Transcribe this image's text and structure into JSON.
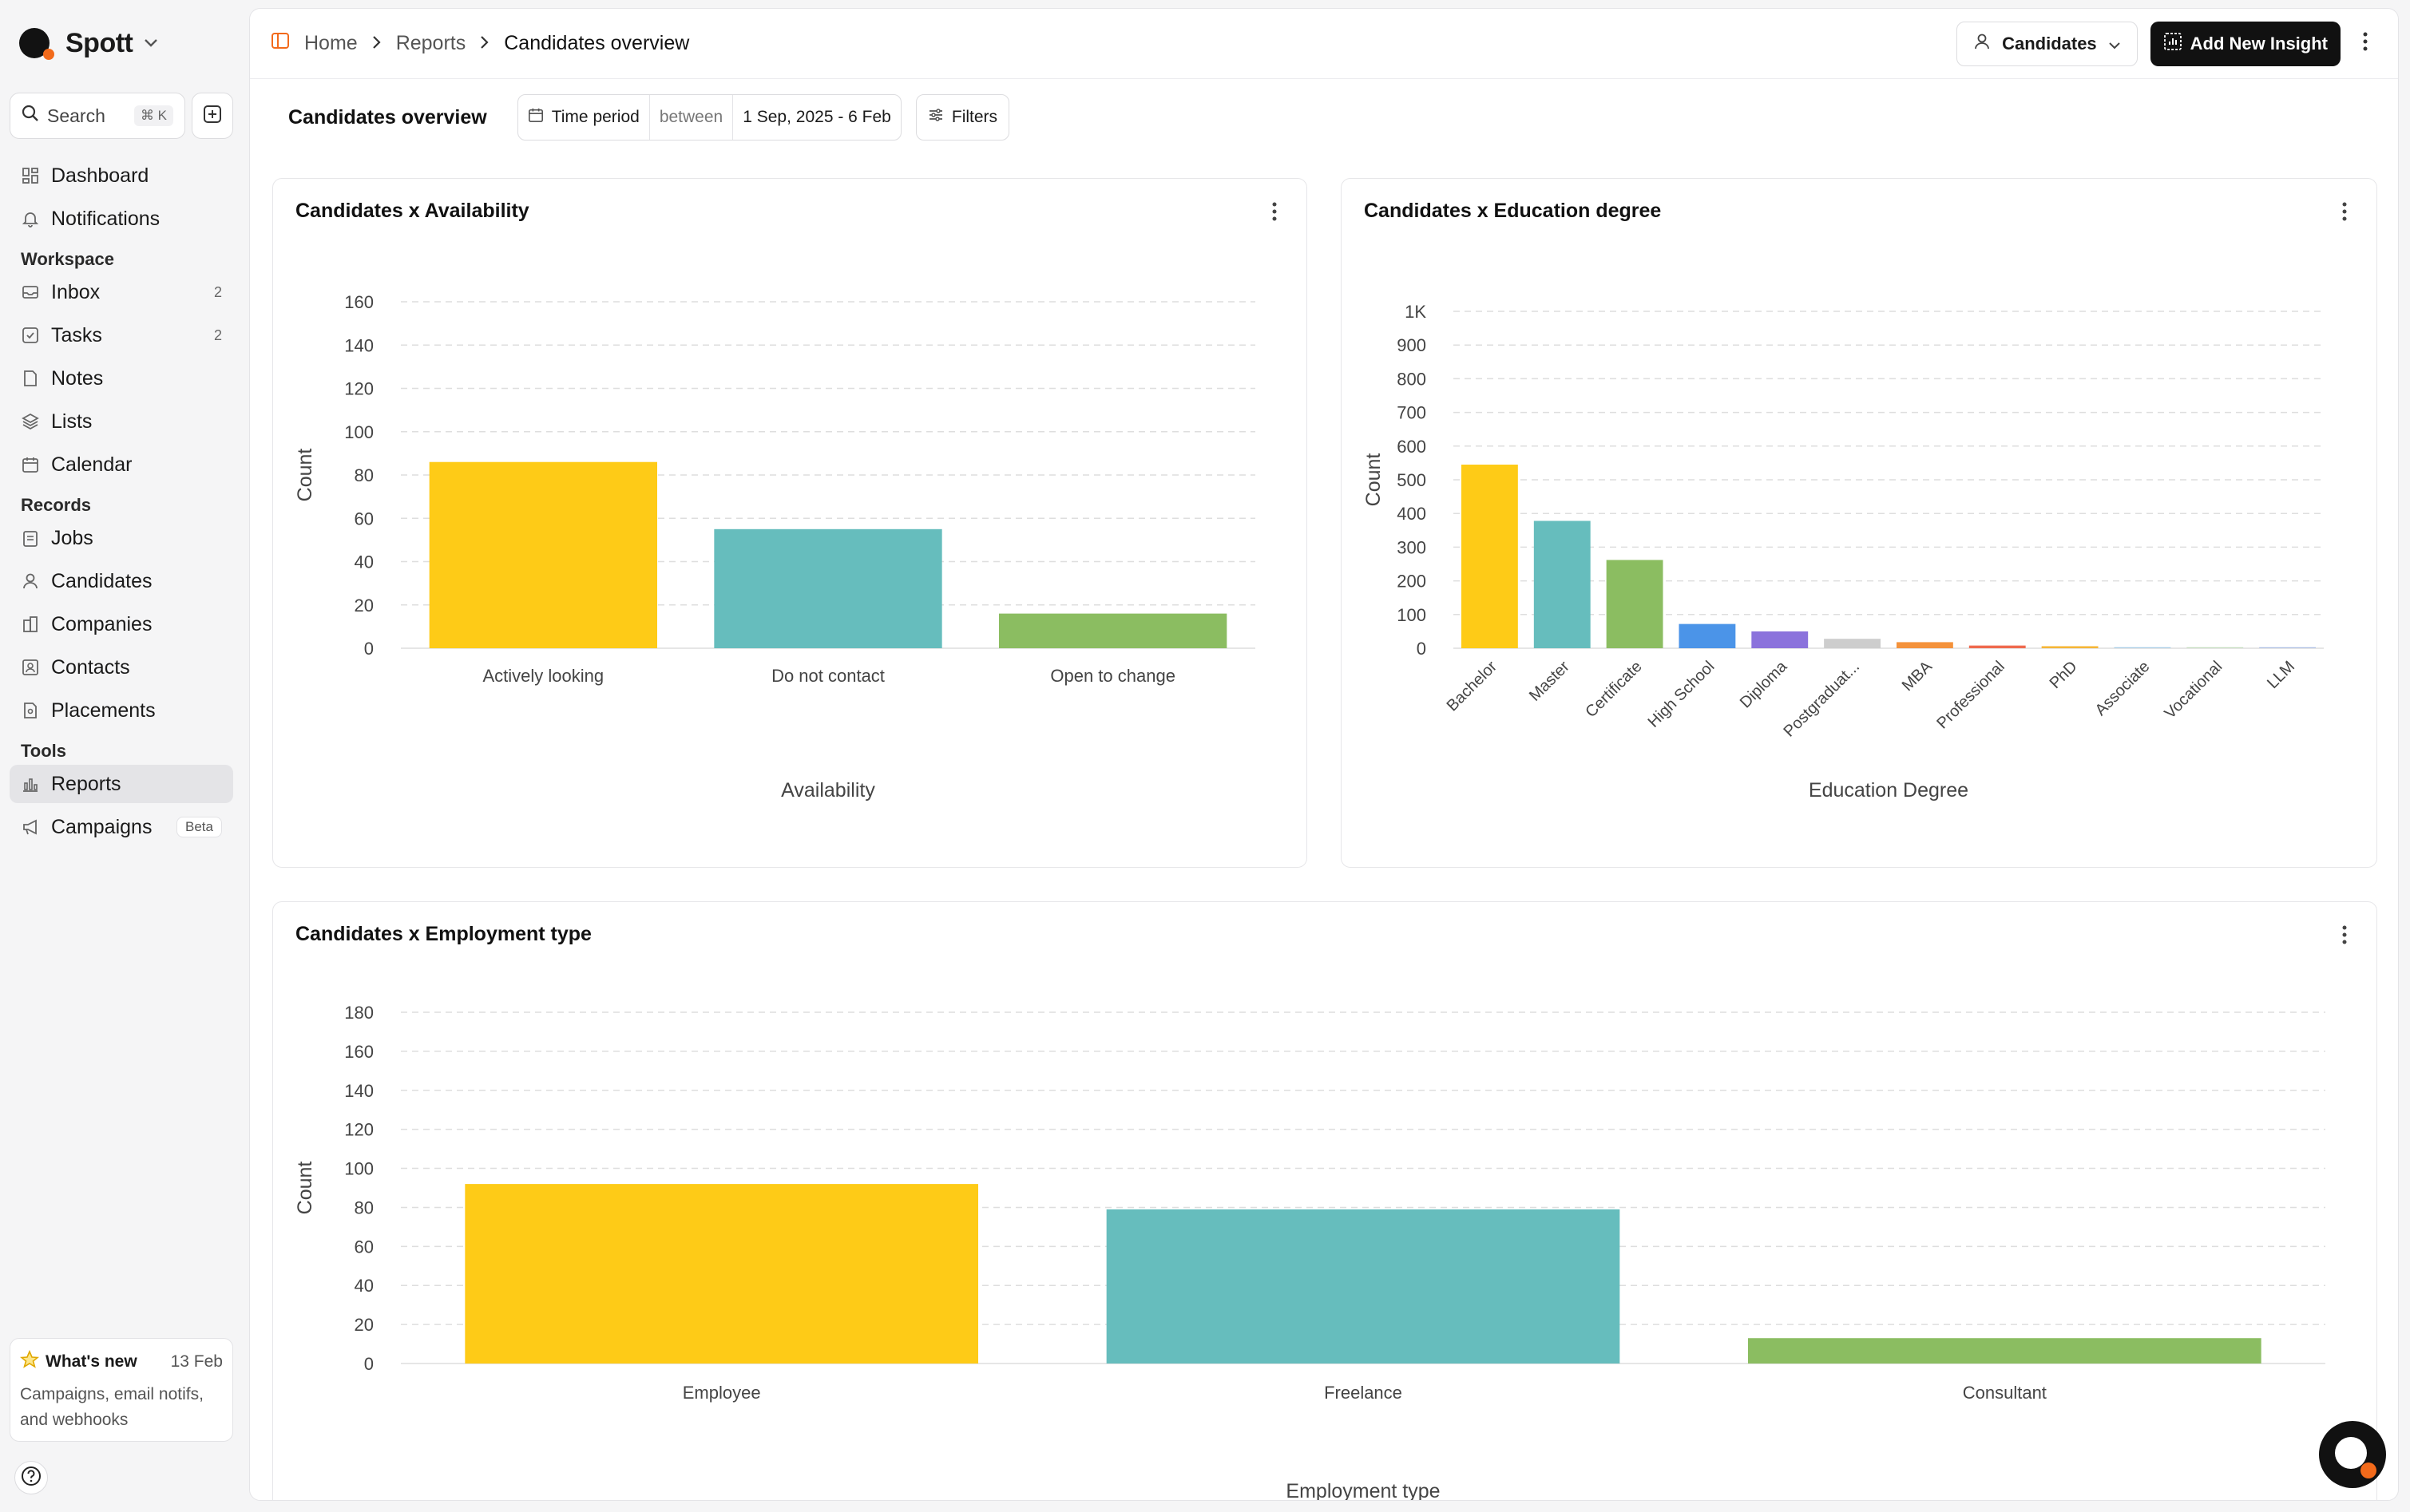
{
  "brand": {
    "name": "Spott"
  },
  "search": {
    "placeholder": "Search",
    "shortcut": "⌘ K"
  },
  "sidebar": {
    "top_items": [
      {
        "label": "Dashboard",
        "icon": "dashboard-icon"
      },
      {
        "label": "Notifications",
        "icon": "bell-icon"
      }
    ],
    "workspace_label": "Workspace",
    "workspace_items": [
      {
        "label": "Inbox",
        "count": "2",
        "icon": "inbox-icon"
      },
      {
        "label": "Tasks",
        "count": "2",
        "icon": "checkbox-icon"
      },
      {
        "label": "Notes",
        "icon": "note-icon"
      },
      {
        "label": "Lists",
        "icon": "layers-icon"
      },
      {
        "label": "Calendar",
        "icon": "calendar-icon"
      }
    ],
    "records_label": "Records",
    "records_items": [
      {
        "label": "Jobs",
        "icon": "clipboard-icon"
      },
      {
        "label": "Candidates",
        "icon": "user-icon"
      },
      {
        "label": "Companies",
        "icon": "building-icon"
      },
      {
        "label": "Contacts",
        "icon": "contact-icon"
      },
      {
        "label": "Placements",
        "icon": "placement-icon"
      }
    ],
    "tools_label": "Tools",
    "tools_items": [
      {
        "label": "Reports",
        "icon": "bar-chart-icon",
        "active": true
      },
      {
        "label": "Campaigns",
        "icon": "megaphone-icon",
        "badge": "Beta"
      }
    ],
    "whats_new": {
      "title": "What's new",
      "date": "13 Feb",
      "body": "Campaigns, email notifs, and webhooks"
    }
  },
  "header": {
    "breadcrumbs": [
      "Home",
      "Reports",
      "Candidates overview"
    ],
    "entity_select": "Candidates",
    "add_button": "Add New Insight"
  },
  "filterbar": {
    "title": "Candidates overview",
    "period_label": "Time period",
    "period_op": "between",
    "period_value": "1 Sep, 2025 - 6 Feb",
    "filters_label": "Filters"
  },
  "colors": {
    "yellow": "#fecb17",
    "teal": "#66bdbd",
    "green": "#8bbd61",
    "blue": "#4b94e8",
    "purple": "#8b72dc",
    "gray": "#cdcdcd",
    "orange": "#f4923b",
    "red": "#ef6a4e",
    "amber": "#f5b638",
    "lightblue": "#a9cde6",
    "lightgreen": "#c6dec0",
    "periwinkle": "#aebfe3"
  },
  "chart_data": [
    {
      "type": "bar",
      "title": "Candidates x Availability",
      "xlabel": "Availability",
      "ylabel": "Count",
      "categories": [
        "Actively looking",
        "Do not contact",
        "Open to change"
      ],
      "values": [
        86,
        55,
        16
      ],
      "bar_colors": [
        "#fecb17",
        "#66bdbd",
        "#8bbd61"
      ],
      "yticks": [
        "0",
        "20",
        "40",
        "60",
        "80",
        "100",
        "120",
        "140",
        "160"
      ],
      "ylim": [
        0,
        160
      ],
      "grid": true
    },
    {
      "type": "bar",
      "title": "Candidates x Education degree",
      "xlabel": "Education Degree",
      "ylabel": "Count",
      "categories": [
        "Bachelor",
        "Master",
        "Certificate",
        "High School",
        "Diploma",
        "Postgraduat...",
        "MBA",
        "Professional",
        "PhD",
        "Associate",
        "Vocational",
        "LLM"
      ],
      "values": [
        545,
        378,
        262,
        72,
        50,
        28,
        18,
        8,
        6,
        3,
        3,
        3
      ],
      "bar_colors": [
        "#fecb17",
        "#66bdbd",
        "#8bbd61",
        "#4b94e8",
        "#8b72dc",
        "#cdcdcd",
        "#f4923b",
        "#ef6a4e",
        "#f5b638",
        "#a9cde6",
        "#c6dec0",
        "#aebfe3"
      ],
      "yticks": [
        "0",
        "100",
        "200",
        "300",
        "400",
        "500",
        "600",
        "700",
        "800",
        "900",
        "1K"
      ],
      "ylim": [
        0,
        1000
      ],
      "grid": true
    },
    {
      "type": "bar",
      "title": "Candidates x Employment type",
      "xlabel": "Employment type",
      "ylabel": "Count",
      "categories": [
        "Employee",
        "Freelance",
        "Consultant"
      ],
      "values": [
        92,
        79,
        13
      ],
      "bar_colors": [
        "#fecb17",
        "#66bdbd",
        "#8bbd61"
      ],
      "yticks": [
        "0",
        "20",
        "40",
        "60",
        "80",
        "100",
        "120",
        "140",
        "160",
        "180"
      ],
      "ylim": [
        0,
        180
      ],
      "grid": true
    }
  ]
}
